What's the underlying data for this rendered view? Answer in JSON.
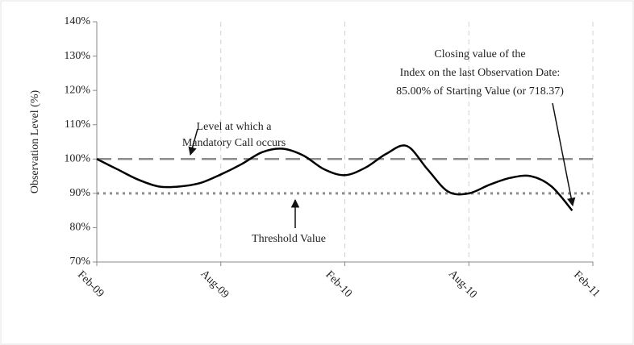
{
  "chart_data": {
    "type": "line",
    "y_axis_label": "Observation Level (%)",
    "x": [
      0,
      1,
      2,
      3,
      4,
      5,
      6,
      7,
      8,
      9,
      10,
      11,
      12,
      13,
      14,
      15,
      16,
      17,
      18,
      19,
      20,
      21,
      22,
      23
    ],
    "xlim": [
      0,
      24
    ],
    "xticks": [
      {
        "value": 0,
        "label": "Feb-09"
      },
      {
        "value": 6,
        "label": "Aug-09"
      },
      {
        "value": 12,
        "label": "Feb-10"
      },
      {
        "value": 18,
        "label": "Aug-10"
      },
      {
        "value": 24,
        "label": "Feb-11"
      }
    ],
    "series": [
      {
        "color": "#000000",
        "values": [
          100,
          97,
          94,
          92,
          92,
          93,
          95.5,
          98.5,
          102,
          103,
          101,
          97,
          95.3,
          97.5,
          101.5,
          103.8,
          97,
          90.5,
          90,
          92.5,
          94.5,
          95,
          92,
          85
        ]
      }
    ],
    "ylim": [
      70,
      140
    ],
    "yticks": [
      {
        "value": 70,
        "label": "70%"
      },
      {
        "value": 80,
        "label": "80%"
      },
      {
        "value": 90,
        "label": "90%"
      },
      {
        "value": 100,
        "label": "100%"
      },
      {
        "value": 110,
        "label": "110%"
      },
      {
        "value": 120,
        "label": "120%"
      },
      {
        "value": 130,
        "label": "130%"
      },
      {
        "value": 140,
        "label": "140%"
      }
    ],
    "grid": "x",
    "reference_lines": [
      {
        "value": 100,
        "style": "dashed",
        "color": "#8c8c8c"
      },
      {
        "value": 90,
        "style": "dotted",
        "color": "#8c8c8c"
      }
    ],
    "annotations": [
      {
        "lines": [
          "Level at which a",
          "Mandatory Call occurs"
        ]
      },
      {
        "lines": [
          "Threshold Value"
        ]
      },
      {
        "lines": [
          "Closing value of the",
          "Index on the last Observation Date:",
          "85.00% of Starting Value (or 718.37)"
        ]
      }
    ]
  }
}
